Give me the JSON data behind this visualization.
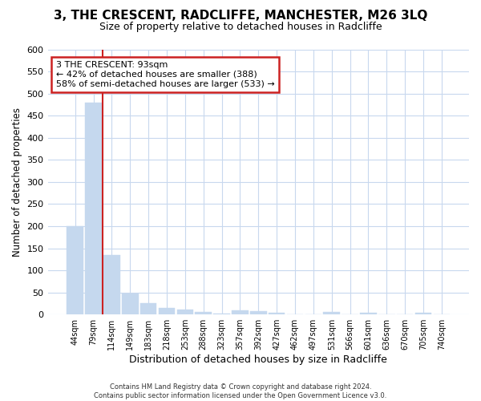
{
  "title": "3, THE CRESCENT, RADCLIFFE, MANCHESTER, M26 3LQ",
  "subtitle": "Size of property relative to detached houses in Radcliffe",
  "xlabel": "Distribution of detached houses by size in Radcliffe",
  "ylabel": "Number of detached properties",
  "footer_line1": "Contains HM Land Registry data © Crown copyright and database right 2024.",
  "footer_line2": "Contains public sector information licensed under the Open Government Licence v3.0.",
  "bin_labels": [
    "44sqm",
    "79sqm",
    "114sqm",
    "149sqm",
    "183sqm",
    "218sqm",
    "253sqm",
    "288sqm",
    "323sqm",
    "357sqm",
    "392sqm",
    "427sqm",
    "462sqm",
    "497sqm",
    "531sqm",
    "566sqm",
    "601sqm",
    "636sqm",
    "670sqm",
    "705sqm",
    "740sqm"
  ],
  "bar_values": [
    200,
    480,
    135,
    47,
    25,
    14,
    11,
    6,
    2,
    9,
    8,
    4,
    1,
    0,
    5,
    0,
    4,
    0,
    0,
    4,
    0
  ],
  "bar_color": "#c5d8ee",
  "grid_color": "#c8d8ee",
  "red_line_color": "#cc2222",
  "red_line_x": 1.5,
  "annotation_text": "3 THE CRESCENT: 93sqm\n← 42% of detached houses are smaller (388)\n58% of semi-detached houses are larger (533) →",
  "annotation_box_facecolor": "#ffffff",
  "annotation_box_edgecolor": "#cc2222",
  "ylim_max": 600,
  "yticks": [
    0,
    50,
    100,
    150,
    200,
    250,
    300,
    350,
    400,
    450,
    500,
    550,
    600
  ],
  "background_color": "#ffffff",
  "title_fontsize": 11,
  "subtitle_fontsize": 9
}
